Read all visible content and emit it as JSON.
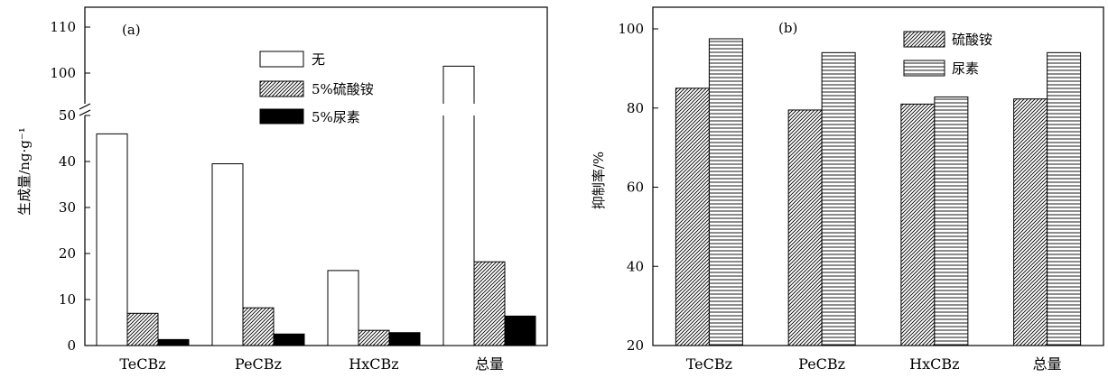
{
  "colors": {
    "stroke": "#000000",
    "background": "#ffffff",
    "solid": "#000000"
  },
  "chart_data": [
    {
      "type": "bar",
      "panel_label": "(a)",
      "ylabel": "生成量/ng·g⁻¹",
      "categories": [
        "TeCBz",
        "PeCBz",
        "HxCBz",
        "总量"
      ],
      "y_ticks_lower": [
        "0",
        "10",
        "20",
        "30",
        "40",
        "50"
      ],
      "y_ticks_upper": [
        "100",
        "110"
      ],
      "ylim_lower": [
        0,
        50
      ],
      "ylim_upper": [
        95,
        110
      ],
      "axis_break": [
        50,
        95
      ],
      "series": [
        {
          "name": "无",
          "fill": "white",
          "values": [
            46.0,
            39.5,
            16.3,
            101.5
          ]
        },
        {
          "name": "5%硫酸铵",
          "fill": "diagonal-hatch",
          "values": [
            7.0,
            8.2,
            3.3,
            18.2
          ]
        },
        {
          "name": "5%尿素",
          "fill": "solid-black",
          "values": [
            1.3,
            2.5,
            2.8,
            6.4
          ]
        }
      ],
      "legend_position": "top-right"
    },
    {
      "type": "bar",
      "panel_label": "(b)",
      "ylabel": "抑制率/%",
      "categories": [
        "TeCBz",
        "PeCBz",
        "HxCBz",
        "总量"
      ],
      "y_ticks": [
        "20",
        "40",
        "60",
        "80",
        "100"
      ],
      "ylim": [
        20,
        105
      ],
      "series": [
        {
          "name": "硫酸铵",
          "fill": "diagonal-hatch",
          "values": [
            85.0,
            79.5,
            81.0,
            82.3
          ]
        },
        {
          "name": "尿素",
          "fill": "horizontal-hatch",
          "values": [
            97.5,
            94.0,
            82.8,
            94.0
          ]
        }
      ],
      "legend_position": "top-right"
    }
  ]
}
